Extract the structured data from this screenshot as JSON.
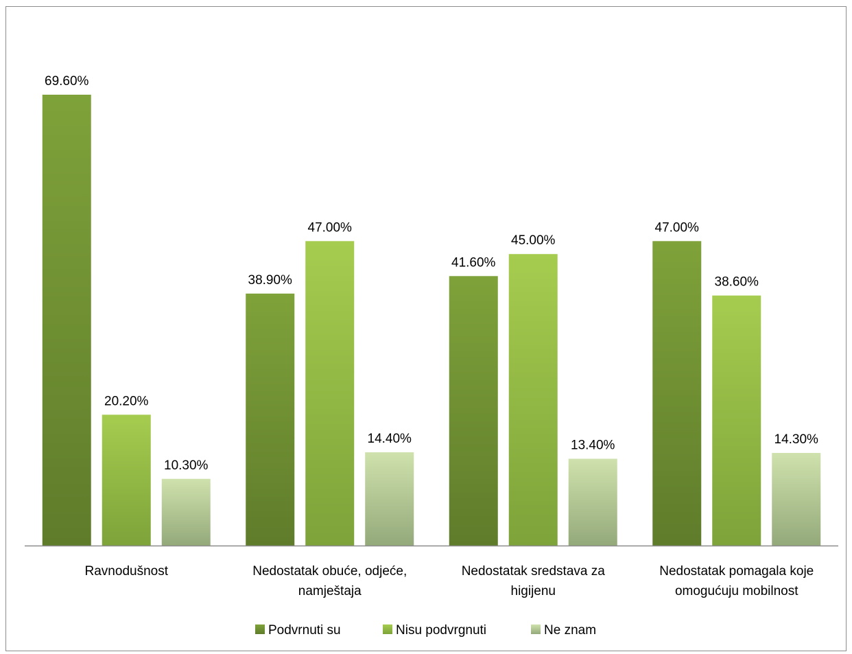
{
  "chart_data": {
    "type": "bar",
    "categories": [
      [
        "Ravnodušnost"
      ],
      [
        "Nedostatak obuće, odjeće,",
        "namještaja"
      ],
      [
        "Nedostatak sredstava za",
        "higijenu"
      ],
      [
        "Nedostatak pomagala koje",
        "omogućuju mobilnost"
      ]
    ],
    "series": [
      {
        "name": "Podvrnuti su",
        "values": [
          69.6,
          38.9,
          41.6,
          47.0
        ],
        "labels": [
          "69.60%",
          "38.90%",
          "41.60%",
          "47.00%"
        ],
        "color_top": "#7fa23a",
        "color_bottom": "#5f7c2b"
      },
      {
        "name": "Nisu podvrgnuti",
        "values": [
          20.2,
          47.0,
          45.0,
          38.6
        ],
        "labels": [
          "20.20%",
          "47.00%",
          "45.00%",
          "38.60%"
        ],
        "color_top": "#a6cc4f",
        "color_bottom": "#7da33a"
      },
      {
        "name": "Ne znam",
        "values": [
          10.3,
          14.4,
          13.4,
          14.3
        ],
        "labels": [
          "10.30%",
          "14.40%",
          "13.40%",
          "14.30%"
        ],
        "color_top": "#cfe2ad",
        "color_bottom": "#94a97a"
      }
    ],
    "ylim": [
      0,
      75
    ],
    "grid": false,
    "legend_position": "bottom"
  }
}
